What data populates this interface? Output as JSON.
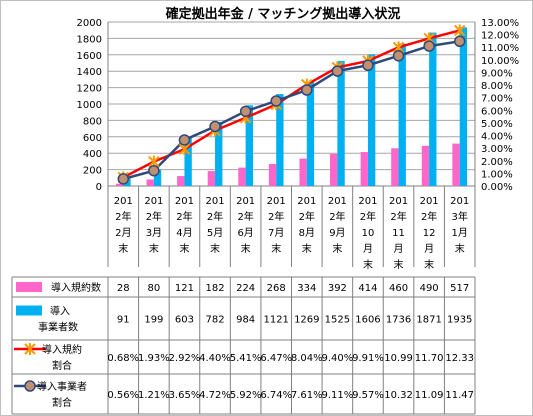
{
  "chart_data": {
    "type": "bar",
    "title": "確定拠出年金 / マッチング拠出導入状況",
    "categories": [
      [
        "201",
        "2年",
        "2月",
        "末"
      ],
      [
        "201",
        "2年",
        "3月",
        "末"
      ],
      [
        "201",
        "2年",
        "4月",
        "末"
      ],
      [
        "201",
        "2年",
        "5月",
        "末"
      ],
      [
        "201",
        "2年",
        "6月",
        "末"
      ],
      [
        "201",
        "2年",
        "7月",
        "末"
      ],
      [
        "201",
        "2年",
        "8月",
        "末"
      ],
      [
        "201",
        "2年",
        "9月",
        "末"
      ],
      [
        "201",
        "2年",
        "10",
        "月",
        "末"
      ],
      [
        "201",
        "2年",
        "11",
        "月",
        "末"
      ],
      [
        "201",
        "2年",
        "12",
        "月",
        "末"
      ],
      [
        "201",
        "3年",
        "1月",
        "末"
      ]
    ],
    "y_left": {
      "min": 0,
      "max": 2000,
      "step": 200
    },
    "y_right": {
      "min": 0,
      "max": 13,
      "step": 1,
      "format": "0.00%"
    },
    "grid": true,
    "legend": "bottom-table",
    "series": [
      {
        "name": "導入規約数",
        "kind": "bar",
        "axis": "left",
        "color": "#ff66cc",
        "values": [
          28,
          80,
          121,
          182,
          224,
          268,
          334,
          392,
          414,
          460,
          490,
          517
        ],
        "labels": [
          "28",
          "80",
          "121",
          "182",
          "224",
          "268",
          "334",
          "392",
          "414",
          "460",
          "490",
          "517"
        ]
      },
      {
        "name": "導入事業者数",
        "name_lines": [
          "導入",
          "事業者数"
        ],
        "kind": "bar",
        "axis": "left",
        "color": "#00b0f0",
        "values": [
          91,
          199,
          603,
          782,
          984,
          1121,
          1269,
          1525,
          1606,
          1736,
          1871,
          1935
        ],
        "labels": [
          "91",
          "199",
          "603",
          "782",
          "984",
          "1121",
          "1269",
          "1525",
          "1606",
          "1736",
          "1871",
          "1935"
        ]
      },
      {
        "name": "導入規約割合",
        "name_lines": [
          "導入規約",
          "割合"
        ],
        "kind": "line",
        "axis": "right",
        "color": "#ff0000",
        "marker": "star",
        "marker_color": "#ff9900",
        "values": [
          0.68,
          1.93,
          2.92,
          4.4,
          5.41,
          6.47,
          8.04,
          9.4,
          9.91,
          10.99,
          11.7,
          12.33
        ],
        "labels": [
          "0.68%",
          "1.93%",
          "2.92%",
          "4.40%",
          "5.41%",
          "6.47%",
          "8.04%",
          "9.40%",
          "9.91%",
          "10.99",
          "11.70",
          "12.33"
        ]
      },
      {
        "name": "導入事業者割合",
        "name_lines": [
          "導入事業者",
          "割合"
        ],
        "kind": "line",
        "axis": "right",
        "color": "#2f4a7a",
        "marker": "circle",
        "marker_color": "#c09070",
        "values": [
          0.56,
          1.21,
          3.65,
          4.72,
          5.92,
          6.74,
          7.61,
          9.11,
          9.57,
          10.32,
          11.09,
          11.47
        ],
        "labels": [
          "0.56%",
          "1.21%",
          "3.65%",
          "4.72%",
          "5.92%",
          "6.74%",
          "7.61%",
          "9.11%",
          "9.57%",
          "10.32",
          "11.09",
          "11.47"
        ]
      }
    ]
  }
}
